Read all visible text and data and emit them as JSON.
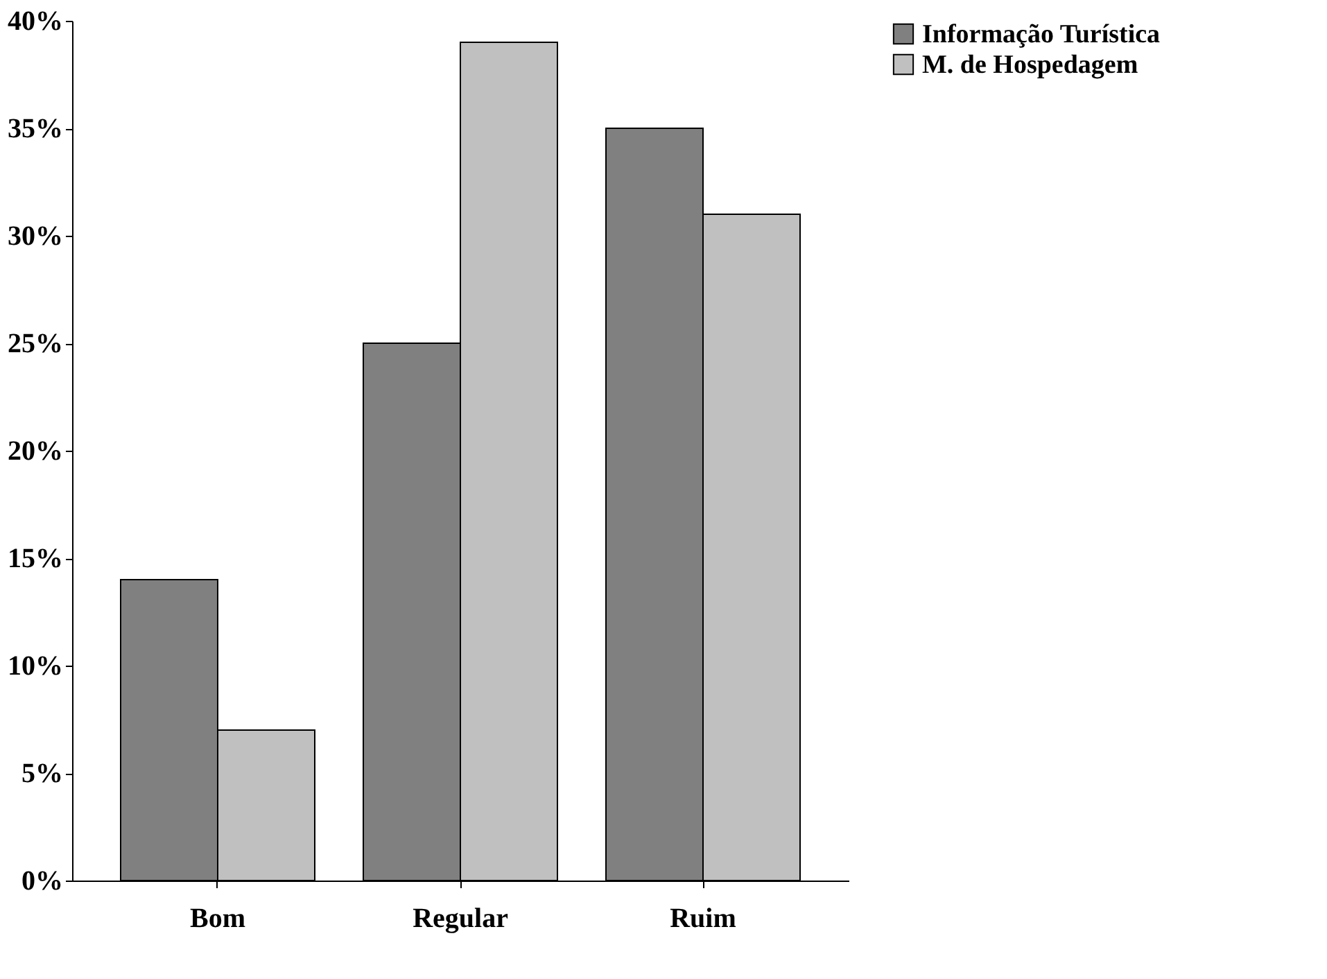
{
  "chart_data": {
    "type": "bar",
    "categories": [
      "Bom",
      "Regular",
      "Ruim"
    ],
    "series": [
      {
        "name": "Informação Turística",
        "color": "#808080",
        "values": [
          14,
          25,
          35
        ]
      },
      {
        "name": "M. de Hospedagem",
        "color": "#c0c0c0",
        "values": [
          7,
          39,
          31
        ]
      }
    ],
    "ylim": [
      0,
      40
    ],
    "yticks": [
      {
        "value": 0,
        "label": "0%"
      },
      {
        "value": 5,
        "label": "5%"
      },
      {
        "value": 10,
        "label": "10%"
      },
      {
        "value": 15,
        "label": "15%"
      },
      {
        "value": 20,
        "label": "20%"
      },
      {
        "value": 25,
        "label": "25%"
      },
      {
        "value": 30,
        "label": "30%"
      },
      {
        "value": 35,
        "label": "35%"
      },
      {
        "value": 40,
        "label": "40%"
      }
    ],
    "grid": false,
    "legend": "right"
  }
}
